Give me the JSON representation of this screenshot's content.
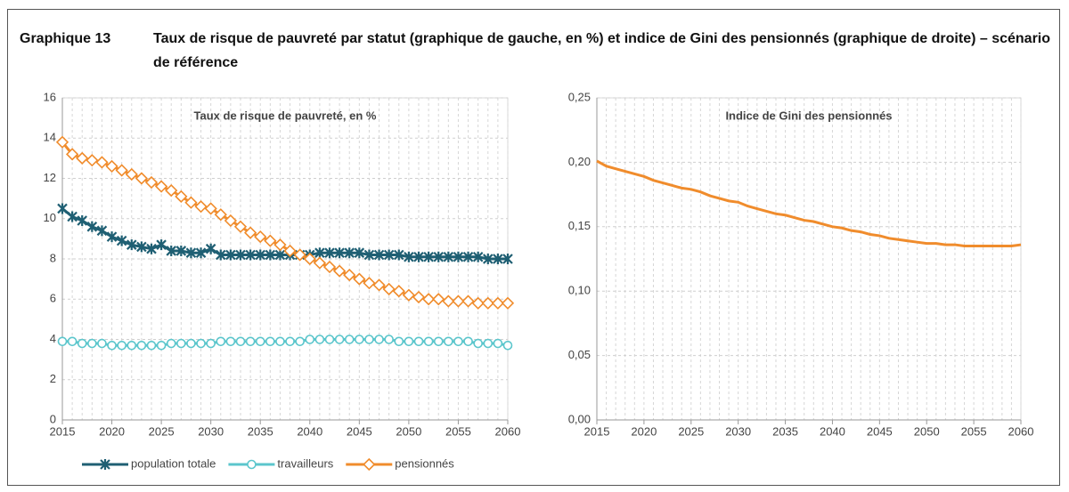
{
  "figure_label": "Graphique 13",
  "figure_title": "Taux de risque de pauvreté par statut (graphique de gauche, en %) et indice de Gini des pensionnés (graphique de droite) – scénario de référence",
  "chart_data": [
    {
      "type": "line",
      "title": "Taux de risque de pauvreté, en %",
      "x": [
        2015,
        2016,
        2017,
        2018,
        2019,
        2020,
        2021,
        2022,
        2023,
        2024,
        2025,
        2026,
        2027,
        2028,
        2029,
        2030,
        2031,
        2032,
        2033,
        2034,
        2035,
        2036,
        2037,
        2038,
        2039,
        2040,
        2041,
        2042,
        2043,
        2044,
        2045,
        2046,
        2047,
        2048,
        2049,
        2050,
        2051,
        2052,
        2053,
        2054,
        2055,
        2056,
        2057,
        2058,
        2059,
        2060
      ],
      "xlim": [
        2015,
        2060
      ],
      "xticks": [
        2015,
        2020,
        2025,
        2030,
        2035,
        2040,
        2045,
        2050,
        2055,
        2060
      ],
      "ylim": [
        0,
        16
      ],
      "yticks": [
        0,
        2,
        4,
        6,
        8,
        10,
        12,
        14,
        16
      ],
      "grid": true,
      "legend": "bottom",
      "series": [
        {
          "name": "population totale",
          "color": "#1f5f73",
          "marker": "star",
          "values": [
            10.5,
            10.1,
            9.9,
            9.6,
            9.4,
            9.1,
            8.9,
            8.7,
            8.6,
            8.5,
            8.7,
            8.4,
            8.4,
            8.3,
            8.3,
            8.5,
            8.2,
            8.2,
            8.2,
            8.2,
            8.2,
            8.2,
            8.2,
            8.2,
            8.2,
            8.2,
            8.3,
            8.3,
            8.3,
            8.3,
            8.3,
            8.2,
            8.2,
            8.2,
            8.2,
            8.1,
            8.1,
            8.1,
            8.1,
            8.1,
            8.1,
            8.1,
            8.1,
            8.0,
            8.0,
            8.0
          ]
        },
        {
          "name": "travailleurs",
          "color": "#5bc6cc",
          "marker": "circle",
          "values": [
            3.9,
            3.9,
            3.8,
            3.8,
            3.8,
            3.7,
            3.7,
            3.7,
            3.7,
            3.7,
            3.7,
            3.8,
            3.8,
            3.8,
            3.8,
            3.8,
            3.9,
            3.9,
            3.9,
            3.9,
            3.9,
            3.9,
            3.9,
            3.9,
            3.9,
            4.0,
            4.0,
            4.0,
            4.0,
            4.0,
            4.0,
            4.0,
            4.0,
            4.0,
            3.9,
            3.9,
            3.9,
            3.9,
            3.9,
            3.9,
            3.9,
            3.9,
            3.8,
            3.8,
            3.8,
            3.7
          ]
        },
        {
          "name": "pensionnés",
          "color": "#f08c2c",
          "marker": "diamond",
          "values": [
            13.8,
            13.2,
            13.0,
            12.9,
            12.8,
            12.6,
            12.4,
            12.2,
            12.0,
            11.8,
            11.6,
            11.4,
            11.1,
            10.8,
            10.6,
            10.5,
            10.2,
            9.9,
            9.6,
            9.3,
            9.1,
            8.9,
            8.7,
            8.4,
            8.2,
            8.0,
            7.8,
            7.6,
            7.4,
            7.2,
            7.0,
            6.8,
            6.7,
            6.5,
            6.4,
            6.2,
            6.1,
            6.0,
            6.0,
            5.9,
            5.9,
            5.9,
            5.8,
            5.8,
            5.8,
            5.8
          ]
        }
      ]
    },
    {
      "type": "line",
      "title": "Indice de Gini des pensionnés",
      "x": [
        2015,
        2016,
        2017,
        2018,
        2019,
        2020,
        2021,
        2022,
        2023,
        2024,
        2025,
        2026,
        2027,
        2028,
        2029,
        2030,
        2031,
        2032,
        2033,
        2034,
        2035,
        2036,
        2037,
        2038,
        2039,
        2040,
        2041,
        2042,
        2043,
        2044,
        2045,
        2046,
        2047,
        2048,
        2049,
        2050,
        2051,
        2052,
        2053,
        2054,
        2055,
        2056,
        2057,
        2058,
        2059,
        2060
      ],
      "xlim": [
        2015,
        2060
      ],
      "xticks": [
        2015,
        2020,
        2025,
        2030,
        2035,
        2040,
        2045,
        2050,
        2055,
        2060
      ],
      "ylim": [
        0,
        0.25
      ],
      "yticks": [
        {
          "value": 0,
          "label": "0,00"
        },
        {
          "value": 0.05,
          "label": "0,05"
        },
        {
          "value": 0.1,
          "label": "0,10"
        },
        {
          "value": 0.15,
          "label": "0,15"
        },
        {
          "value": 0.2,
          "label": "0,20"
        },
        {
          "value": 0.25,
          "label": "0,25"
        }
      ],
      "grid": true,
      "series": [
        {
          "color": "#f08c2c",
          "values": [
            0.201,
            0.197,
            0.195,
            0.193,
            0.191,
            0.189,
            0.186,
            0.184,
            0.182,
            0.18,
            0.179,
            0.177,
            0.174,
            0.172,
            0.17,
            0.169,
            0.166,
            0.164,
            0.162,
            0.16,
            0.159,
            0.157,
            0.155,
            0.154,
            0.152,
            0.15,
            0.149,
            0.147,
            0.146,
            0.144,
            0.143,
            0.141,
            0.14,
            0.139,
            0.138,
            0.137,
            0.137,
            0.136,
            0.136,
            0.135,
            0.135,
            0.135,
            0.135,
            0.135,
            0.135,
            0.136
          ]
        }
      ]
    }
  ]
}
